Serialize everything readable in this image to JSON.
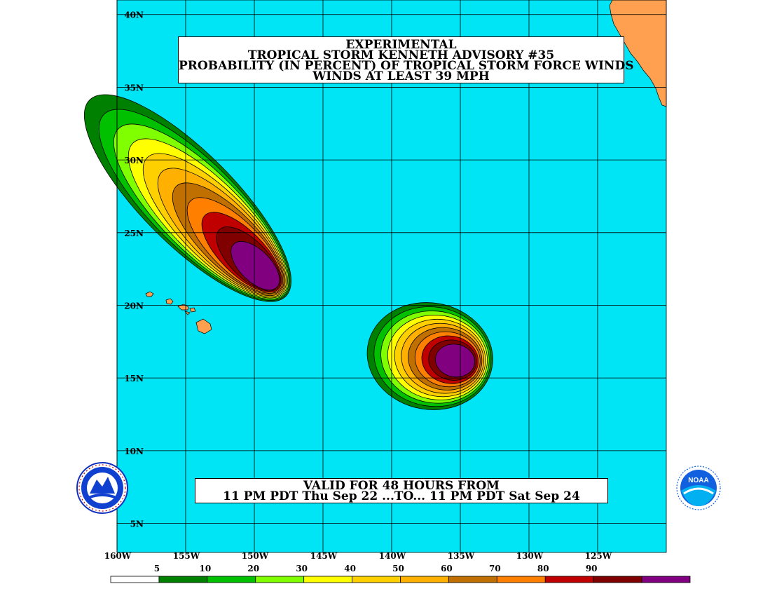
{
  "title": {
    "line1": "EXPERIMENTAL",
    "line2": "TROPICAL STORM KENNETH ADVISORY #35",
    "line3": "PROBABILITY (IN PERCENT) OF TROPICAL STORM FORCE WINDS",
    "line4": "WINDS AT LEAST 39 MPH"
  },
  "valid": {
    "line1": "VALID FOR 48 HOURS FROM",
    "line2": "11 PM PDT Thu Sep 22 ...TO... 11 PM PDT Sat Sep 24"
  },
  "lat_labels": [
    "40N",
    "35N",
    "30N",
    "25N",
    "20N",
    "15N",
    "10N",
    "5N"
  ],
  "lon_labels": [
    "160W",
    "155W",
    "150W",
    "145W",
    "140W",
    "135W",
    "130W",
    "125W"
  ],
  "legend": {
    "labels": [
      "5",
      "10",
      "20",
      "30",
      "40",
      "50",
      "60",
      "70",
      "80",
      "90"
    ],
    "colors": [
      "#ffffff",
      "#008000",
      "#00c000",
      "#80ff00",
      "#ffff00",
      "#ffd000",
      "#ffb000",
      "#c07000",
      "#ff8000",
      "#c00000",
      "#800000",
      "#800080"
    ]
  },
  "colors": {
    "ocean": "#00e5f5",
    "land": "#ffa050",
    "grid": "#000000"
  },
  "map_extent": {
    "lon_west": -160,
    "lon_east": -120,
    "lat_south": 3,
    "lat_north": 41
  },
  "probability_areas": [
    {
      "name": "northwest-area",
      "center_lat": 22.6,
      "center_lon": -149.8,
      "axis_bearing_deg": 315
    },
    {
      "name": "southeast-area",
      "center_lat": 16.2,
      "center_lon": -135.4,
      "axis_bearing_deg": 280
    }
  ],
  "logos": {
    "left": "nws-logo",
    "right": "noaa-logo"
  },
  "noaa_text": "NOAA"
}
